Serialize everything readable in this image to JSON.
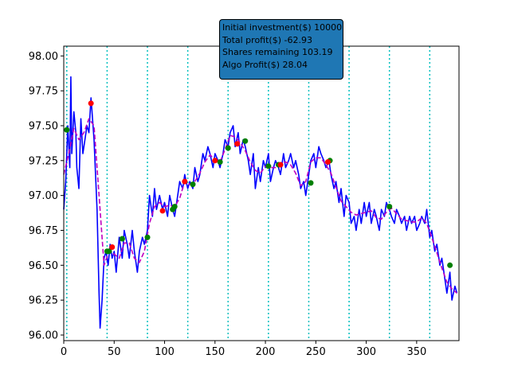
{
  "chart_data": {
    "type": "line",
    "title": "",
    "xlabel": "",
    "ylabel": "",
    "xlim": [
      0,
      392
    ],
    "ylim": [
      95.96,
      98.07
    ],
    "x_ticks": [
      0,
      50,
      100,
      150,
      200,
      250,
      300,
      350
    ],
    "y_ticks": [
      96.0,
      96.25,
      96.5,
      96.75,
      97.0,
      97.25,
      97.5,
      97.75,
      98.0
    ],
    "x_tick_labels": [
      "0",
      "50",
      "100",
      "150",
      "200",
      "250",
      "300",
      "350"
    ],
    "y_tick_labels": [
      "96.00",
      "96.25",
      "96.50",
      "96.75",
      "97.00",
      "97.25",
      "97.50",
      "97.75",
      "98.00"
    ],
    "grid": false,
    "vertical_markers": {
      "x": [
        3,
        43,
        83,
        123,
        163,
        203,
        243,
        283,
        323,
        363
      ],
      "color": "#00bfbf",
      "style": "dotted"
    },
    "series": [
      {
        "style": "solid",
        "color": "#0000ff",
        "x": [
          0,
          2,
          4,
          6,
          7,
          8,
          10,
          12,
          13,
          15,
          17,
          19,
          21,
          23,
          25,
          27,
          30,
          33,
          35,
          36,
          38,
          40,
          42,
          44,
          46,
          48,
          50,
          52,
          55,
          58,
          60,
          63,
          65,
          68,
          70,
          73,
          75,
          78,
          80,
          83,
          85,
          88,
          90,
          92,
          95,
          98,
          100,
          103,
          105,
          108,
          110,
          113,
          115,
          118,
          120,
          123,
          125,
          128,
          130,
          133,
          135,
          138,
          140,
          143,
          145,
          148,
          150,
          153,
          155,
          158,
          160,
          163,
          165,
          168,
          170,
          173,
          175,
          178,
          180,
          183,
          185,
          188,
          190,
          193,
          195,
          198,
          200,
          203,
          205,
          208,
          210,
          213,
          215,
          218,
          220,
          223,
          225,
          228,
          230,
          233,
          235,
          238,
          240,
          243,
          245,
          248,
          250,
          253,
          255,
          258,
          260,
          263,
          265,
          268,
          270,
          273,
          275,
          278,
          280,
          283,
          285,
          288,
          290,
          293,
          295,
          298,
          300,
          303,
          305,
          308,
          310,
          313,
          315,
          318,
          320,
          323,
          325,
          328,
          330,
          333,
          335,
          338,
          340,
          343,
          345,
          348,
          350,
          353,
          355,
          358,
          360,
          363,
          365,
          368,
          370,
          373,
          375,
          378,
          380,
          383,
          385,
          388,
          390
        ],
        "y": [
          96.9,
          97.1,
          97.5,
          97.2,
          97.85,
          97.3,
          97.6,
          97.45,
          97.2,
          97.05,
          97.55,
          97.3,
          97.4,
          97.5,
          97.45,
          97.7,
          97.4,
          96.9,
          96.3,
          96.05,
          96.25,
          96.55,
          96.6,
          96.5,
          96.65,
          96.55,
          96.6,
          96.45,
          96.7,
          96.55,
          96.75,
          96.65,
          96.55,
          96.75,
          96.6,
          96.45,
          96.6,
          96.7,
          96.65,
          96.75,
          97.0,
          96.85,
          97.05,
          96.9,
          97.0,
          96.9,
          96.95,
          96.85,
          97.0,
          96.9,
          96.85,
          97.0,
          97.1,
          97.05,
          97.15,
          97.05,
          97.1,
          97.05,
          97.2,
          97.1,
          97.15,
          97.3,
          97.25,
          97.35,
          97.3,
          97.2,
          97.3,
          97.25,
          97.2,
          97.3,
          97.4,
          97.35,
          97.45,
          97.5,
          97.35,
          97.45,
          97.3,
          97.4,
          97.35,
          97.25,
          97.15,
          97.3,
          97.05,
          97.2,
          97.1,
          97.25,
          97.2,
          97.3,
          97.1,
          97.2,
          97.25,
          97.2,
          97.15,
          97.3,
          97.2,
          97.25,
          97.3,
          97.2,
          97.25,
          97.15,
          97.05,
          97.1,
          97.0,
          97.15,
          97.25,
          97.3,
          97.2,
          97.35,
          97.3,
          97.25,
          97.2,
          97.25,
          97.15,
          97.05,
          97.1,
          96.95,
          97.05,
          96.85,
          97.0,
          96.95,
          96.8,
          96.85,
          96.75,
          96.9,
          96.8,
          96.95,
          96.85,
          96.95,
          96.8,
          96.9,
          96.85,
          96.75,
          96.9,
          96.85,
          96.95,
          96.9,
          96.85,
          96.8,
          96.9,
          96.85,
          96.8,
          96.85,
          96.75,
          96.85,
          96.8,
          96.85,
          96.75,
          96.8,
          96.85,
          96.8,
          96.9,
          96.7,
          96.75,
          96.6,
          96.65,
          96.5,
          96.55,
          96.4,
          96.3,
          96.45,
          96.25,
          96.35,
          96.3
        ]
      },
      {
        "style": "dashed",
        "color": "#bf00bf",
        "x": [
          0,
          5,
          10,
          15,
          20,
          25,
          30,
          35,
          40,
          45,
          50,
          55,
          60,
          65,
          70,
          75,
          80,
          85,
          90,
          95,
          100,
          105,
          110,
          115,
          120,
          125,
          130,
          135,
          140,
          145,
          150,
          155,
          160,
          165,
          170,
          175,
          180,
          185,
          190,
          195,
          200,
          205,
          210,
          215,
          220,
          225,
          230,
          235,
          240,
          245,
          250,
          255,
          260,
          265,
          270,
          275,
          280,
          285,
          290,
          295,
          300,
          305,
          310,
          315,
          320,
          325,
          330,
          335,
          340,
          345,
          350,
          355,
          360,
          365,
          370,
          375,
          380,
          385,
          390
        ],
        "y": [
          97.15,
          97.3,
          97.48,
          97.4,
          97.45,
          97.55,
          97.5,
          97.0,
          96.5,
          96.6,
          96.58,
          96.55,
          96.66,
          96.66,
          96.55,
          96.52,
          96.6,
          96.8,
          96.92,
          96.95,
          96.92,
          96.93,
          96.92,
          96.98,
          97.1,
          97.08,
          97.1,
          97.16,
          97.24,
          97.29,
          97.26,
          97.24,
          97.33,
          97.43,
          97.42,
          97.38,
          97.32,
          97.24,
          97.18,
          97.16,
          97.21,
          97.2,
          97.2,
          97.23,
          97.24,
          97.22,
          97.16,
          97.07,
          97.1,
          97.24,
          97.27,
          97.27,
          97.22,
          97.16,
          97.06,
          96.96,
          96.92,
          96.88,
          96.86,
          96.87,
          96.88,
          96.89,
          96.84,
          96.83,
          96.88,
          96.91,
          96.87,
          96.83,
          96.82,
          96.81,
          96.81,
          96.84,
          96.8,
          96.7,
          96.59,
          96.48,
          96.38,
          96.33,
          96.3
        ]
      }
    ],
    "markers": [
      {
        "color": "#008000",
        "points": [
          [
            3,
            97.47
          ],
          [
            43,
            96.6
          ],
          [
            45,
            96.6
          ],
          [
            58,
            96.69
          ],
          [
            83,
            96.7
          ],
          [
            108,
            96.9
          ],
          [
            110,
            96.92
          ],
          [
            128,
            97.08
          ],
          [
            155,
            97.24
          ],
          [
            163,
            97.34
          ],
          [
            180,
            97.39
          ],
          [
            203,
            97.21
          ],
          [
            213,
            97.22
          ],
          [
            245,
            97.09
          ],
          [
            264,
            97.25
          ],
          [
            323,
            96.92
          ],
          [
            383,
            96.5
          ]
        ]
      },
      {
        "color": "#ff0000",
        "points": [
          [
            27,
            97.66
          ],
          [
            48,
            96.63
          ],
          [
            98,
            96.89
          ],
          [
            120,
            97.1
          ],
          [
            150,
            97.25
          ],
          [
            172,
            97.37
          ],
          [
            215,
            97.22
          ],
          [
            262,
            97.24
          ]
        ]
      }
    ]
  },
  "info_box": {
    "lines": [
      "Initial investment($) 10000",
      "Total profit($) -62.93",
      "Shares remaining 103.19",
      "Algo Profit($) 28.04"
    ]
  }
}
